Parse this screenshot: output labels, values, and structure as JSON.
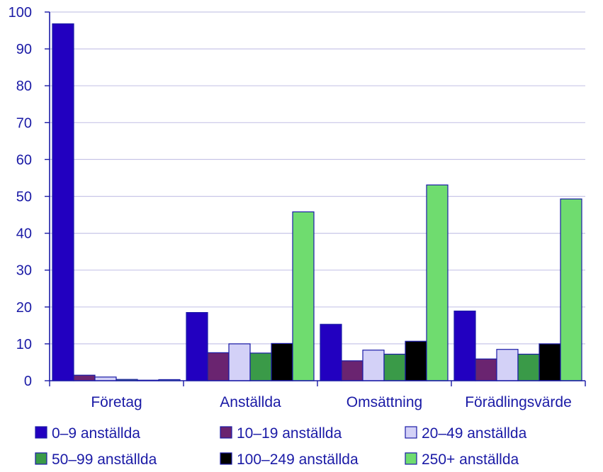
{
  "chart_data": {
    "type": "bar",
    "categories": [
      "Företag",
      "Anställda",
      "Omsättning",
      "Förädlingsvärde"
    ],
    "series": [
      {
        "name": "0–9 anställda",
        "color": "#2200c0",
        "values": [
          96.8,
          18.5,
          15.3,
          18.9
        ]
      },
      {
        "name": "10–19 anställda",
        "color": "#6a2470",
        "values": [
          1.5,
          7.6,
          5.4,
          5.9
        ]
      },
      {
        "name": "20–49 anställda",
        "color": "#d3d1f7",
        "values": [
          1.0,
          10.0,
          8.3,
          8.5
        ]
      },
      {
        "name": "50–99 anställda",
        "color": "#3a9a48",
        "values": [
          0.35,
          7.5,
          7.2,
          7.2
        ]
      },
      {
        "name": "100–249 anställda",
        "color": "#000000",
        "values": [
          0.15,
          10.1,
          10.7,
          10.0
        ]
      },
      {
        "name": "250+ anställda",
        "color": "#6fdc6f",
        "values": [
          0.3,
          45.8,
          53.1,
          49.3
        ]
      }
    ],
    "title": "",
    "xlabel": "",
    "ylabel": "",
    "ylim": [
      0,
      100
    ],
    "yticks": [
      0,
      10,
      20,
      30,
      40,
      50,
      60,
      70,
      80,
      90,
      100
    ],
    "grid": true,
    "legend": "bottom",
    "axis_color": "#1a1aa6",
    "grid_color": "#c8c6e8",
    "bar_outline_color": "#1a1aa6"
  }
}
